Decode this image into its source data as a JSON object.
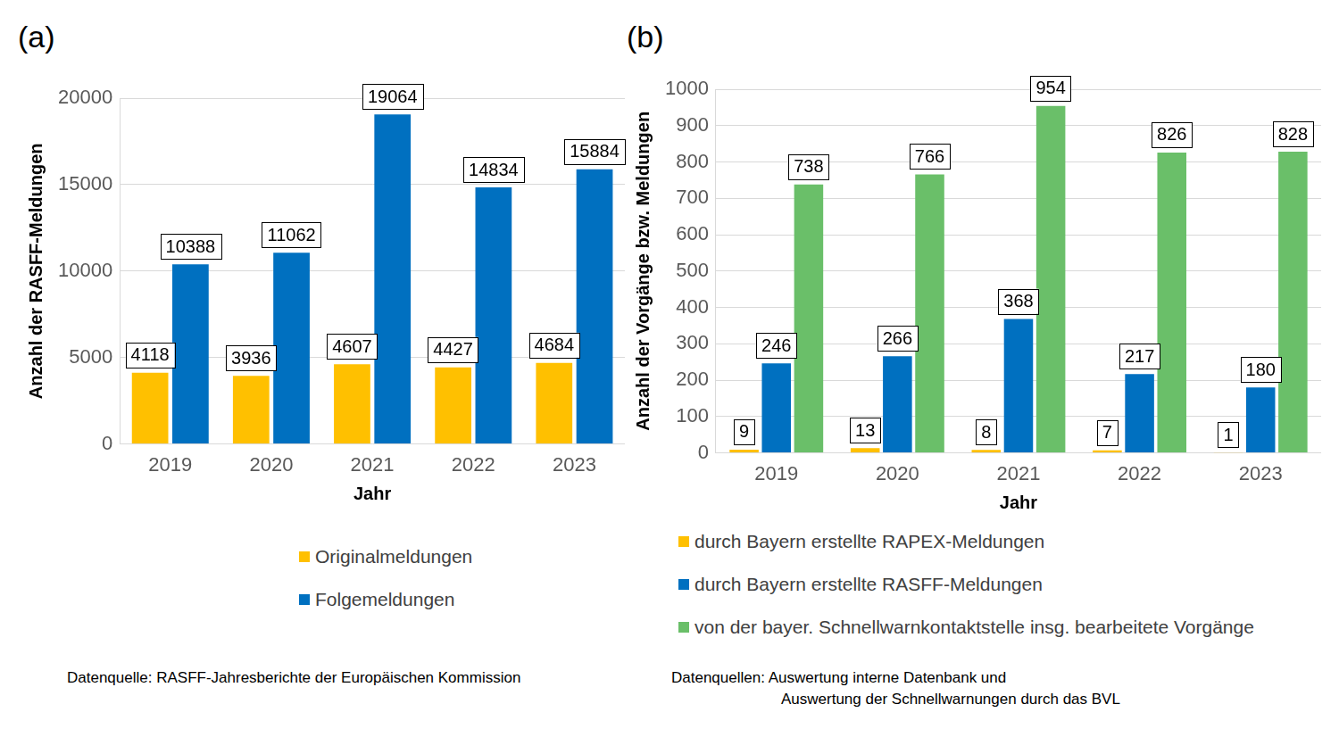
{
  "chart_data": [
    {
      "type": "bar",
      "title": "(a)",
      "x_label": "Jahr",
      "y_label": "Anzahl der RASFF-Meldungen",
      "categories": [
        "2019",
        "2020",
        "2021",
        "2022",
        "2023"
      ],
      "series": [
        {
          "name": "Originalmeldungen",
          "color": "#ffc000",
          "values": [
            4118,
            3936,
            4607,
            4427,
            4684
          ]
        },
        {
          "name": "Folgemeldungen",
          "color": "#0070c0",
          "values": [
            10388,
            11062,
            19064,
            14834,
            15884
          ]
        }
      ],
      "ylim": [
        0,
        20000
      ],
      "yticks": [
        0,
        5000,
        10000,
        15000,
        20000
      ],
      "grid": true,
      "legend": "bottom",
      "data_labels": true,
      "annotations": [
        "Datenquelle: RASFF-Jahresberichte der Europäischen Kommission"
      ]
    },
    {
      "type": "bar",
      "title": "(b)",
      "x_label": "Jahr",
      "y_label": "Anzahl der Vorgänge bzw. Meldungen",
      "categories": [
        "2019",
        "2020",
        "2021",
        "2022",
        "2023"
      ],
      "series": [
        {
          "name": "durch Bayern erstellte RAPEX-Meldungen",
          "color": "#ffc000",
          "values": [
            9,
            13,
            8,
            7,
            1
          ]
        },
        {
          "name": "durch Bayern erstellte RASFF-Meldungen",
          "color": "#0070c0",
          "values": [
            246,
            266,
            368,
            217,
            180
          ]
        },
        {
          "name": "von der bayer. Schnellwarnkontaktstelle insg. bearbeitete Vorgänge",
          "color": "#6abf69",
          "values": [
            738,
            766,
            954,
            826,
            828
          ]
        }
      ],
      "ylim": [
        0,
        1000
      ],
      "yticks": [
        0,
        100,
        200,
        300,
        400,
        500,
        600,
        700,
        800,
        900,
        1000
      ],
      "grid": true,
      "legend": "bottom",
      "data_labels": true,
      "annotations": [
        "Datenquellen: Auswertung interne Datenbank und",
        "Auswertung der Schnellwarnungen durch das BVL"
      ]
    }
  ]
}
